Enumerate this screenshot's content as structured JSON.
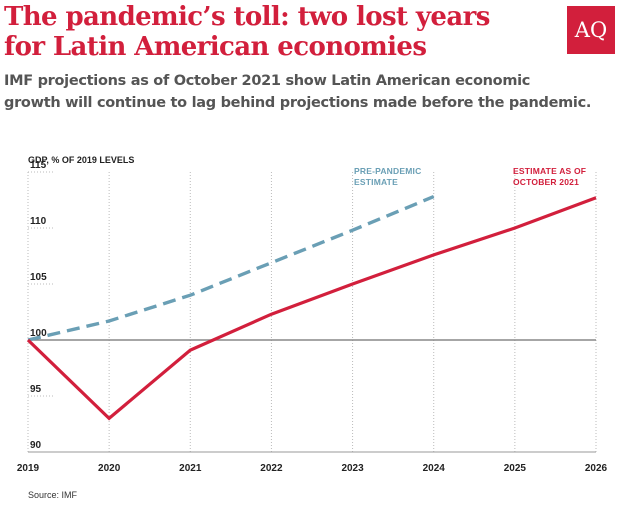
{
  "header": {
    "title_line1": "The pandemic’s toll: two lost years",
    "title_line2": "for Latin American economies",
    "logo_text": "AQ",
    "subtitle_line1": "IMF projections as of October 2021 show Latin American economic",
    "subtitle_line2": "growth will continue to lag behind projections made before the pandemic."
  },
  "footer": {
    "source": "Source: IMF"
  },
  "colors": {
    "brand_red": "#d21f3c",
    "prepandemic_blue": "#6a9fb5",
    "baseline_gray": "#888888",
    "grid": "#bbbbbb"
  },
  "chart_data": {
    "type": "line",
    "ylabel": "GDP, % OF 2019 LEVELS",
    "xlabel": "",
    "ylim": [
      90,
      115
    ],
    "xlim": [
      2019,
      2026
    ],
    "yticks": [
      90,
      95,
      100,
      105,
      110,
      115
    ],
    "xticks": [
      2019,
      2020,
      2021,
      2022,
      2023,
      2024,
      2025,
      2026
    ],
    "grid": "vertical dotted lines at each year",
    "reference_line": 100,
    "series": [
      {
        "name": "PRE-PANDEMIC ESTIMATE",
        "label_lines": [
          "PRE-PANDEMIC",
          "ESTIMATE"
        ],
        "style": "dashed",
        "color": "#6a9fb5",
        "x": [
          2019,
          2020,
          2021,
          2022,
          2023,
          2024
        ],
        "values": [
          100,
          101.7,
          104,
          106.9,
          109.8,
          112.8
        ]
      },
      {
        "name": "ESTIMATE AS OF OCTOBER 2021",
        "label_lines": [
          "ESTIMATE AS OF",
          "OCTOBER 2021"
        ],
        "style": "solid",
        "color": "#d21f3c",
        "x": [
          2019,
          2020,
          2021,
          2022,
          2023,
          2024,
          2025,
          2026
        ],
        "values": [
          100,
          93,
          99.1,
          102.3,
          105,
          107.6,
          110,
          112.7
        ]
      }
    ]
  }
}
